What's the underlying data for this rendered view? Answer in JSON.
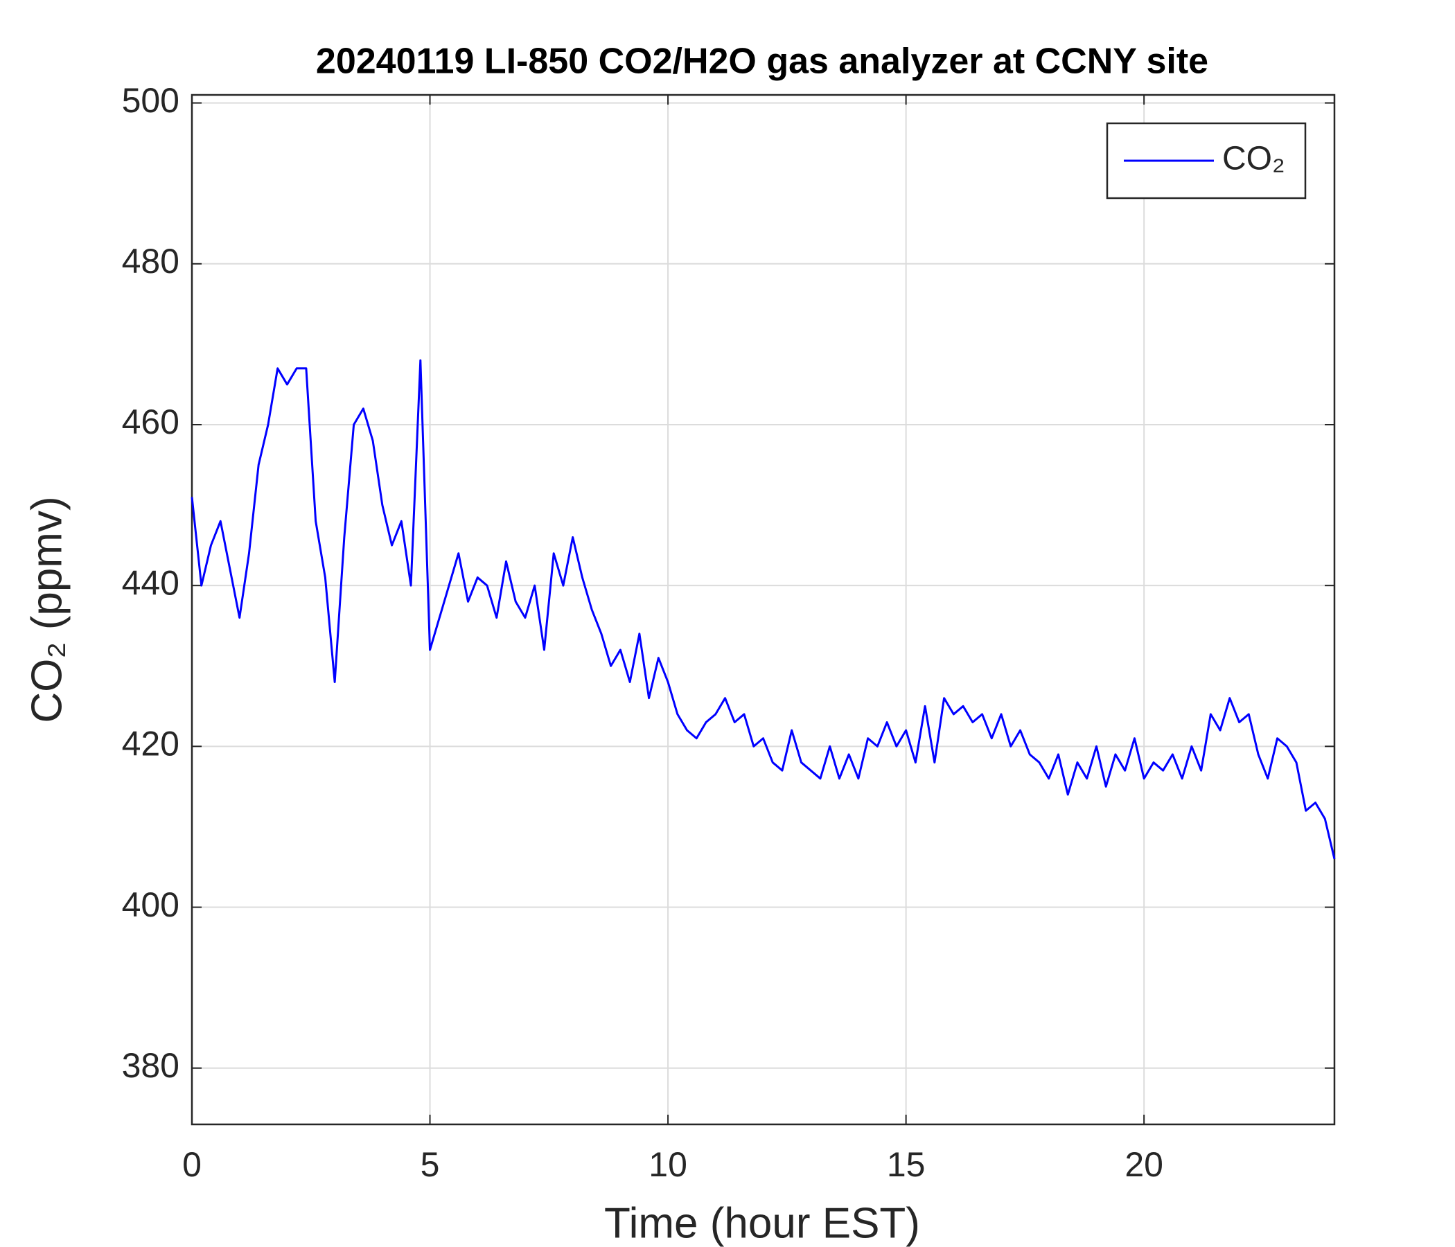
{
  "chart_data": {
    "type": "line",
    "title": "20240119 LI-850 CO2/H2O gas analyzer at CCNY site",
    "xlabel": "Time (hour EST)",
    "ylabel": "CO₂ (ppmv)",
    "x": [
      0,
      0.2,
      0.4,
      0.6,
      0.8,
      1,
      1.2,
      1.4,
      1.6,
      1.8,
      2,
      2.2,
      2.4,
      2.6,
      2.8,
      3,
      3.2,
      3.4,
      3.6,
      3.8,
      4,
      4.2,
      4.4,
      4.6,
      4.8,
      5,
      5.2,
      5.4,
      5.6,
      5.8,
      6,
      6.2,
      6.4,
      6.6,
      6.8,
      7,
      7.2,
      7.4,
      7.6,
      7.8,
      8,
      8.2,
      8.4,
      8.6,
      8.8,
      9,
      9.2,
      9.4,
      9.6,
      9.8,
      10,
      10.2,
      10.4,
      10.6,
      10.8,
      11,
      11.2,
      11.4,
      11.6,
      11.8,
      12,
      12.2,
      12.4,
      12.6,
      12.8,
      13,
      13.2,
      13.4,
      13.6,
      13.8,
      14,
      14.2,
      14.4,
      14.6,
      14.8,
      15,
      15.2,
      15.4,
      15.6,
      15.8,
      16,
      16.2,
      16.4,
      16.6,
      16.8,
      17,
      17.2,
      17.4,
      17.6,
      17.8,
      18,
      18.2,
      18.4,
      18.6,
      18.8,
      19,
      19.2,
      19.4,
      19.6,
      19.8,
      20,
      20.2,
      20.4,
      20.6,
      20.8,
      21,
      21.2,
      21.4,
      21.6,
      21.8,
      22,
      22.2,
      22.4,
      22.6,
      22.8,
      23,
      23.2,
      23.4,
      23.6,
      23.8,
      24
    ],
    "series": [
      {
        "name": "CO₂",
        "color": "#0000ff",
        "values": [
          451,
          440,
          445,
          448,
          442,
          436,
          444,
          455,
          460,
          467,
          465,
          467,
          467,
          448,
          441,
          428,
          446,
          460,
          462,
          458,
          450,
          445,
          448,
          440,
          468,
          432,
          436,
          440,
          444,
          438,
          441,
          440,
          436,
          443,
          438,
          436,
          440,
          432,
          444,
          440,
          446,
          441,
          437,
          434,
          430,
          432,
          428,
          434,
          426,
          431,
          428,
          424,
          422,
          421,
          423,
          424,
          426,
          423,
          424,
          420,
          421,
          418,
          417,
          422,
          418,
          417,
          416,
          420,
          416,
          419,
          416,
          421,
          420,
          423,
          420,
          422,
          418,
          425,
          418,
          426,
          424,
          425,
          423,
          424,
          421,
          424,
          420,
          422,
          419,
          418,
          416,
          419,
          414,
          418,
          416,
          420,
          415,
          419,
          417,
          421,
          416,
          418,
          417,
          419,
          416,
          420,
          417,
          424,
          422,
          426,
          423,
          424,
          419,
          416,
          421,
          420,
          418,
          412,
          413,
          411,
          406
        ]
      }
    ],
    "xlim": [
      0,
      24
    ],
    "xticks": [
      0,
      5,
      10,
      15,
      20
    ],
    "ylim": [
      373,
      501
    ],
    "yticks": [
      380,
      400,
      420,
      440,
      460,
      480,
      500
    ],
    "grid": true,
    "legend": "upper right"
  }
}
